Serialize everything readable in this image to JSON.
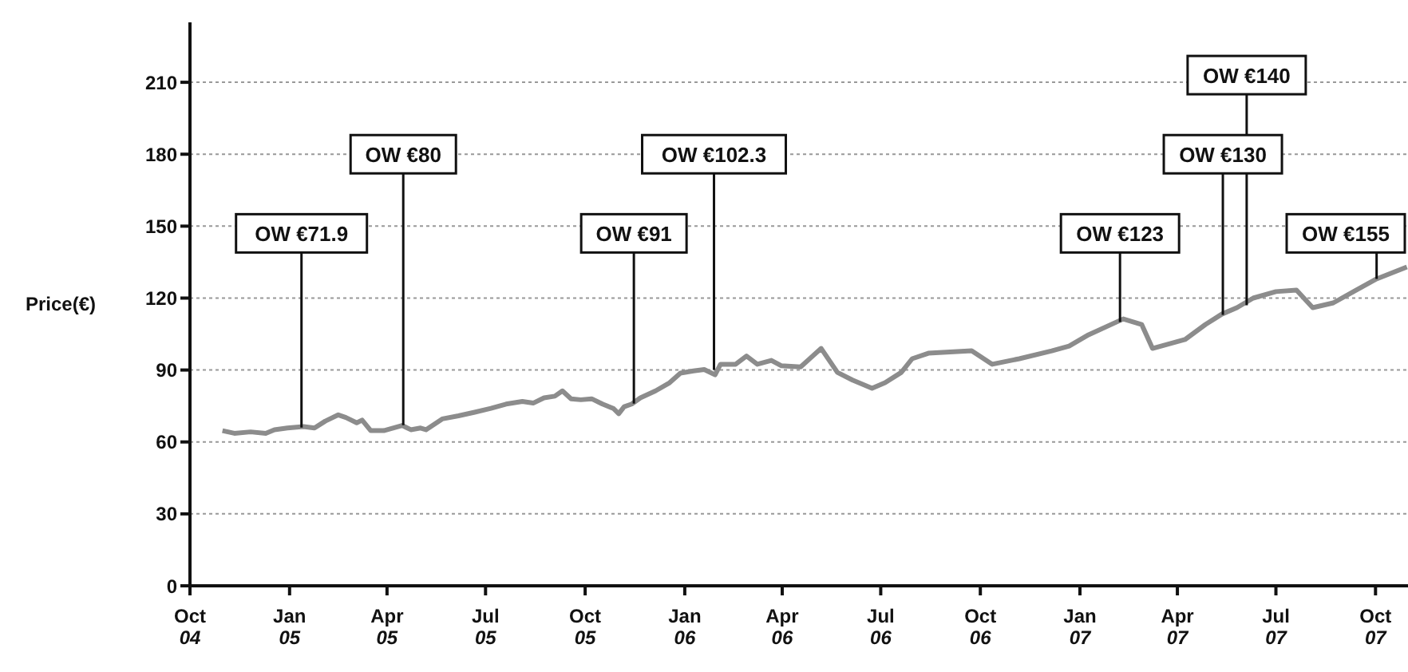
{
  "chart_data": {
    "type": "line",
    "ylabel": "Price(€)",
    "xlim": [
      "2004-10-01",
      "2007-10-31"
    ],
    "xticks": [
      {
        "value": "2004-10-01",
        "label": "Oct 04"
      },
      {
        "value": "2005-01-01",
        "label": "Jan 05"
      },
      {
        "value": "2005-04-01",
        "label": "Apr 05"
      },
      {
        "value": "2005-07-01",
        "label": "Jul 05"
      },
      {
        "value": "2005-10-01",
        "label": "Oct 05"
      },
      {
        "value": "2006-01-01",
        "label": "Jan 06"
      },
      {
        "value": "2006-04-01",
        "label": "Apr 06"
      },
      {
        "value": "2006-07-01",
        "label": "Jul 06"
      },
      {
        "value": "2006-10-01",
        "label": "Oct 06"
      },
      {
        "value": "2007-01-01",
        "label": "Jan 07"
      },
      {
        "value": "2007-04-01",
        "label": "Apr 07"
      },
      {
        "value": "2007-07-01",
        "label": "Jul 07"
      },
      {
        "value": "2007-10-01",
        "label": "Oct 07"
      }
    ],
    "ylim": [
      0,
      235
    ],
    "yticks": [
      0,
      30,
      60,
      90,
      120,
      150,
      180,
      210
    ],
    "grid": "y",
    "marker": "none",
    "line_style": "solid",
    "x": [
      "2004-10-31",
      "2004-11-11",
      "2004-11-26",
      "2004-12-10",
      "2004-12-18",
      "2004-12-30",
      "2005-01-14",
      "2005-01-24",
      "2005-02-03",
      "2005-02-15",
      "2005-02-22",
      "2005-03-04",
      "2005-03-09",
      "2005-03-17",
      "2005-03-29",
      "2005-04-15",
      "2005-04-23",
      "2005-05-02",
      "2005-05-07",
      "2005-05-22",
      "2005-06-06",
      "2005-06-21",
      "2005-07-06",
      "2005-07-20",
      "2005-08-04",
      "2005-08-14",
      "2005-08-24",
      "2005-09-03",
      "2005-09-10",
      "2005-09-18",
      "2005-09-27",
      "2005-10-07",
      "2005-10-17",
      "2005-10-27",
      "2005-11-01",
      "2005-11-06",
      "2005-11-13",
      "2005-11-21",
      "2005-12-05",
      "2005-12-18",
      "2005-12-28",
      "2006-01-09",
      "2006-01-19",
      "2006-01-29",
      "2006-02-03",
      "2006-02-17",
      "2006-02-27",
      "2006-03-09",
      "2006-03-22",
      "2006-03-31",
      "2006-04-18",
      "2006-05-07",
      "2006-05-22",
      "2006-06-05",
      "2006-06-23",
      "2006-07-05",
      "2006-07-20",
      "2006-07-30",
      "2006-08-14",
      "2006-09-23",
      "2006-10-12",
      "2006-11-06",
      "2006-12-06",
      "2006-12-22",
      "2007-01-09",
      "2007-02-10",
      "2007-02-27",
      "2007-03-09",
      "2007-04-08",
      "2007-04-27",
      "2007-05-12",
      "2007-05-26",
      "2007-06-10",
      "2007-07-01",
      "2007-07-20",
      "2007-08-04",
      "2007-08-23",
      "2007-09-13",
      "2007-10-02",
      "2007-10-30"
    ],
    "series": [
      {
        "color": "#8c8c8c",
        "values": [
          64.7,
          63.6,
          64.2,
          63.6,
          65.1,
          65.8,
          66.4,
          65.8,
          68.7,
          71.3,
          70.2,
          68,
          69.1,
          64.7,
          64.7,
          66.9,
          65.1,
          65.8,
          65.1,
          69.6,
          70.9,
          72.4,
          74,
          75.8,
          76.9,
          76.2,
          78.4,
          79.1,
          81.3,
          78,
          77.6,
          78,
          75.8,
          74,
          71.8,
          74.7,
          75.8,
          78.4,
          81.3,
          84.7,
          88.7,
          89.6,
          90.2,
          88,
          92.4,
          92.4,
          95.8,
          92.4,
          94,
          91.8,
          91.3,
          99,
          89,
          85.8,
          82.4,
          84.7,
          89,
          94.7,
          97,
          98,
          92.4,
          94.7,
          98,
          100,
          104.7,
          111.3,
          109,
          99,
          102.7,
          109,
          113.3,
          116,
          120,
          122.7,
          123.3,
          116,
          118,
          123.3,
          128,
          133
        ]
      }
    ],
    "annotations": [
      {
        "text": "OW €71.9",
        "x": "2005-01-12",
        "y": 66
      },
      {
        "text": "OW €80",
        "x": "2005-04-16",
        "y": 67
      },
      {
        "text": "OW €91",
        "x": "2005-11-15",
        "y": 76
      },
      {
        "text": "OW €102.3",
        "x": "2006-01-28",
        "y": 90
      },
      {
        "text": "OW €123",
        "x": "2007-02-07",
        "y": 110
      },
      {
        "text": "OW €130",
        "x": "2007-05-13",
        "y": 113
      },
      {
        "text": "OW €140",
        "x": "2007-06-04",
        "y": 117
      },
      {
        "text": "OW €155",
        "x": "2007-10-02",
        "y": 128
      }
    ]
  }
}
